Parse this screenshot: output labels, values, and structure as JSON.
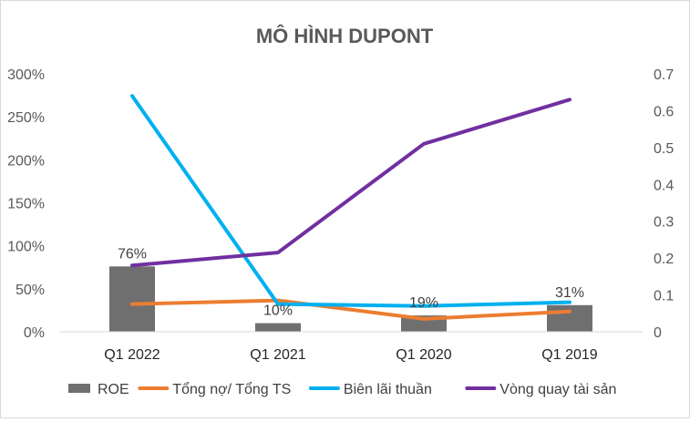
{
  "chart_data": {
    "type": "bar",
    "title": "MÔ HÌNH DUPONT",
    "categories": [
      "Q1 2022",
      "Q1 2021",
      "Q1 2020",
      "Q1 2019"
    ],
    "y_left": {
      "ticks": [
        "0%",
        "50%",
        "100%",
        "150%",
        "200%",
        "250%",
        "300%"
      ],
      "ylim": [
        0,
        3.0
      ]
    },
    "y_right": {
      "ticks": [
        "0",
        "0.1",
        "0.2",
        "0.3",
        "0.4",
        "0.5",
        "0.6",
        "0.7"
      ],
      "ylim": [
        0,
        0.7
      ]
    },
    "grid": false,
    "legend_position": "bottom",
    "series": [
      {
        "name": "ROE",
        "kind": "bar",
        "axis": "left",
        "color": "#6f6f6f",
        "values": [
          0.76,
          0.1,
          0.19,
          0.31
        ],
        "labels": [
          "76%",
          "10%",
          "19%",
          "31%"
        ]
      },
      {
        "name": "Tổng nợ/ Tổng TS",
        "kind": "line",
        "axis": "right",
        "color": "#ed7d31",
        "values": [
          0.075,
          0.085,
          0.035,
          0.055
        ]
      },
      {
        "name": "Biên lãi thuần",
        "kind": "line",
        "axis": "right",
        "color": "#00b0f0",
        "values": [
          0.64,
          0.075,
          0.07,
          0.08
        ]
      },
      {
        "name": "Vòng quay tài sản",
        "kind": "line",
        "axis": "right",
        "color": "#7030a0",
        "values": [
          0.18,
          0.215,
          0.51,
          0.63
        ]
      }
    ]
  }
}
